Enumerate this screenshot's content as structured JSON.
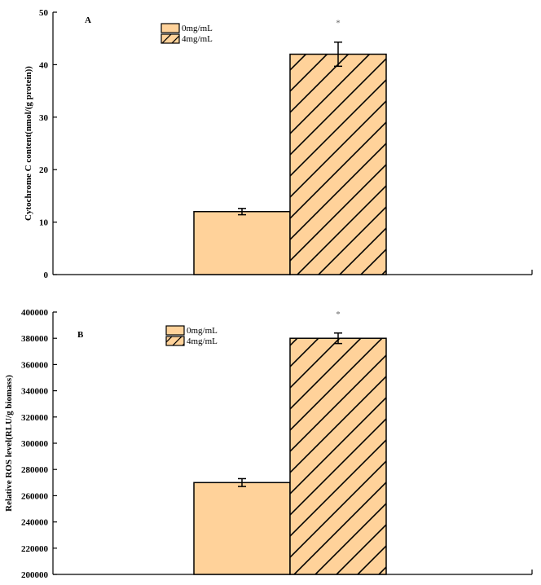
{
  "chart_data": [
    {
      "type": "bar",
      "panel_label": "A",
      "categories": [
        "0mg/mL",
        "4mg/mL"
      ],
      "values": [
        12,
        42
      ],
      "errors": [
        0.6,
        2.3
      ],
      "significance": [
        "",
        "*"
      ],
      "ylabel": "Cytochrome C content(nmol/(g protein))",
      "ylim": [
        0,
        50
      ],
      "yticks": [
        "0",
        "10",
        "20",
        "30",
        "40",
        "50"
      ],
      "legend": [
        "0mg/mL",
        "4mg/mL"
      ],
      "legend_position": "top-center",
      "grid": false
    },
    {
      "type": "bar",
      "panel_label": "B",
      "categories": [
        "0mg/mL",
        "4mg/mL"
      ],
      "values": [
        270000,
        380000
      ],
      "errors": [
        3000,
        4000
      ],
      "significance": [
        "",
        "*"
      ],
      "ylabel": "Relative ROS level(RLU/g biomass)",
      "ylim": [
        200000,
        400000
      ],
      "yticks": [
        "200000",
        "220000",
        "240000",
        "260000",
        "280000",
        "300000",
        "320000",
        "340000",
        "360000",
        "380000",
        "400000"
      ],
      "legend": [
        "0mg/mL",
        "4mg/mL"
      ],
      "legend_position": "top-center",
      "grid": false
    }
  ],
  "colors": {
    "bar_fill": "#ffd29a",
    "stroke": "#000000",
    "hatch": "#000000"
  }
}
